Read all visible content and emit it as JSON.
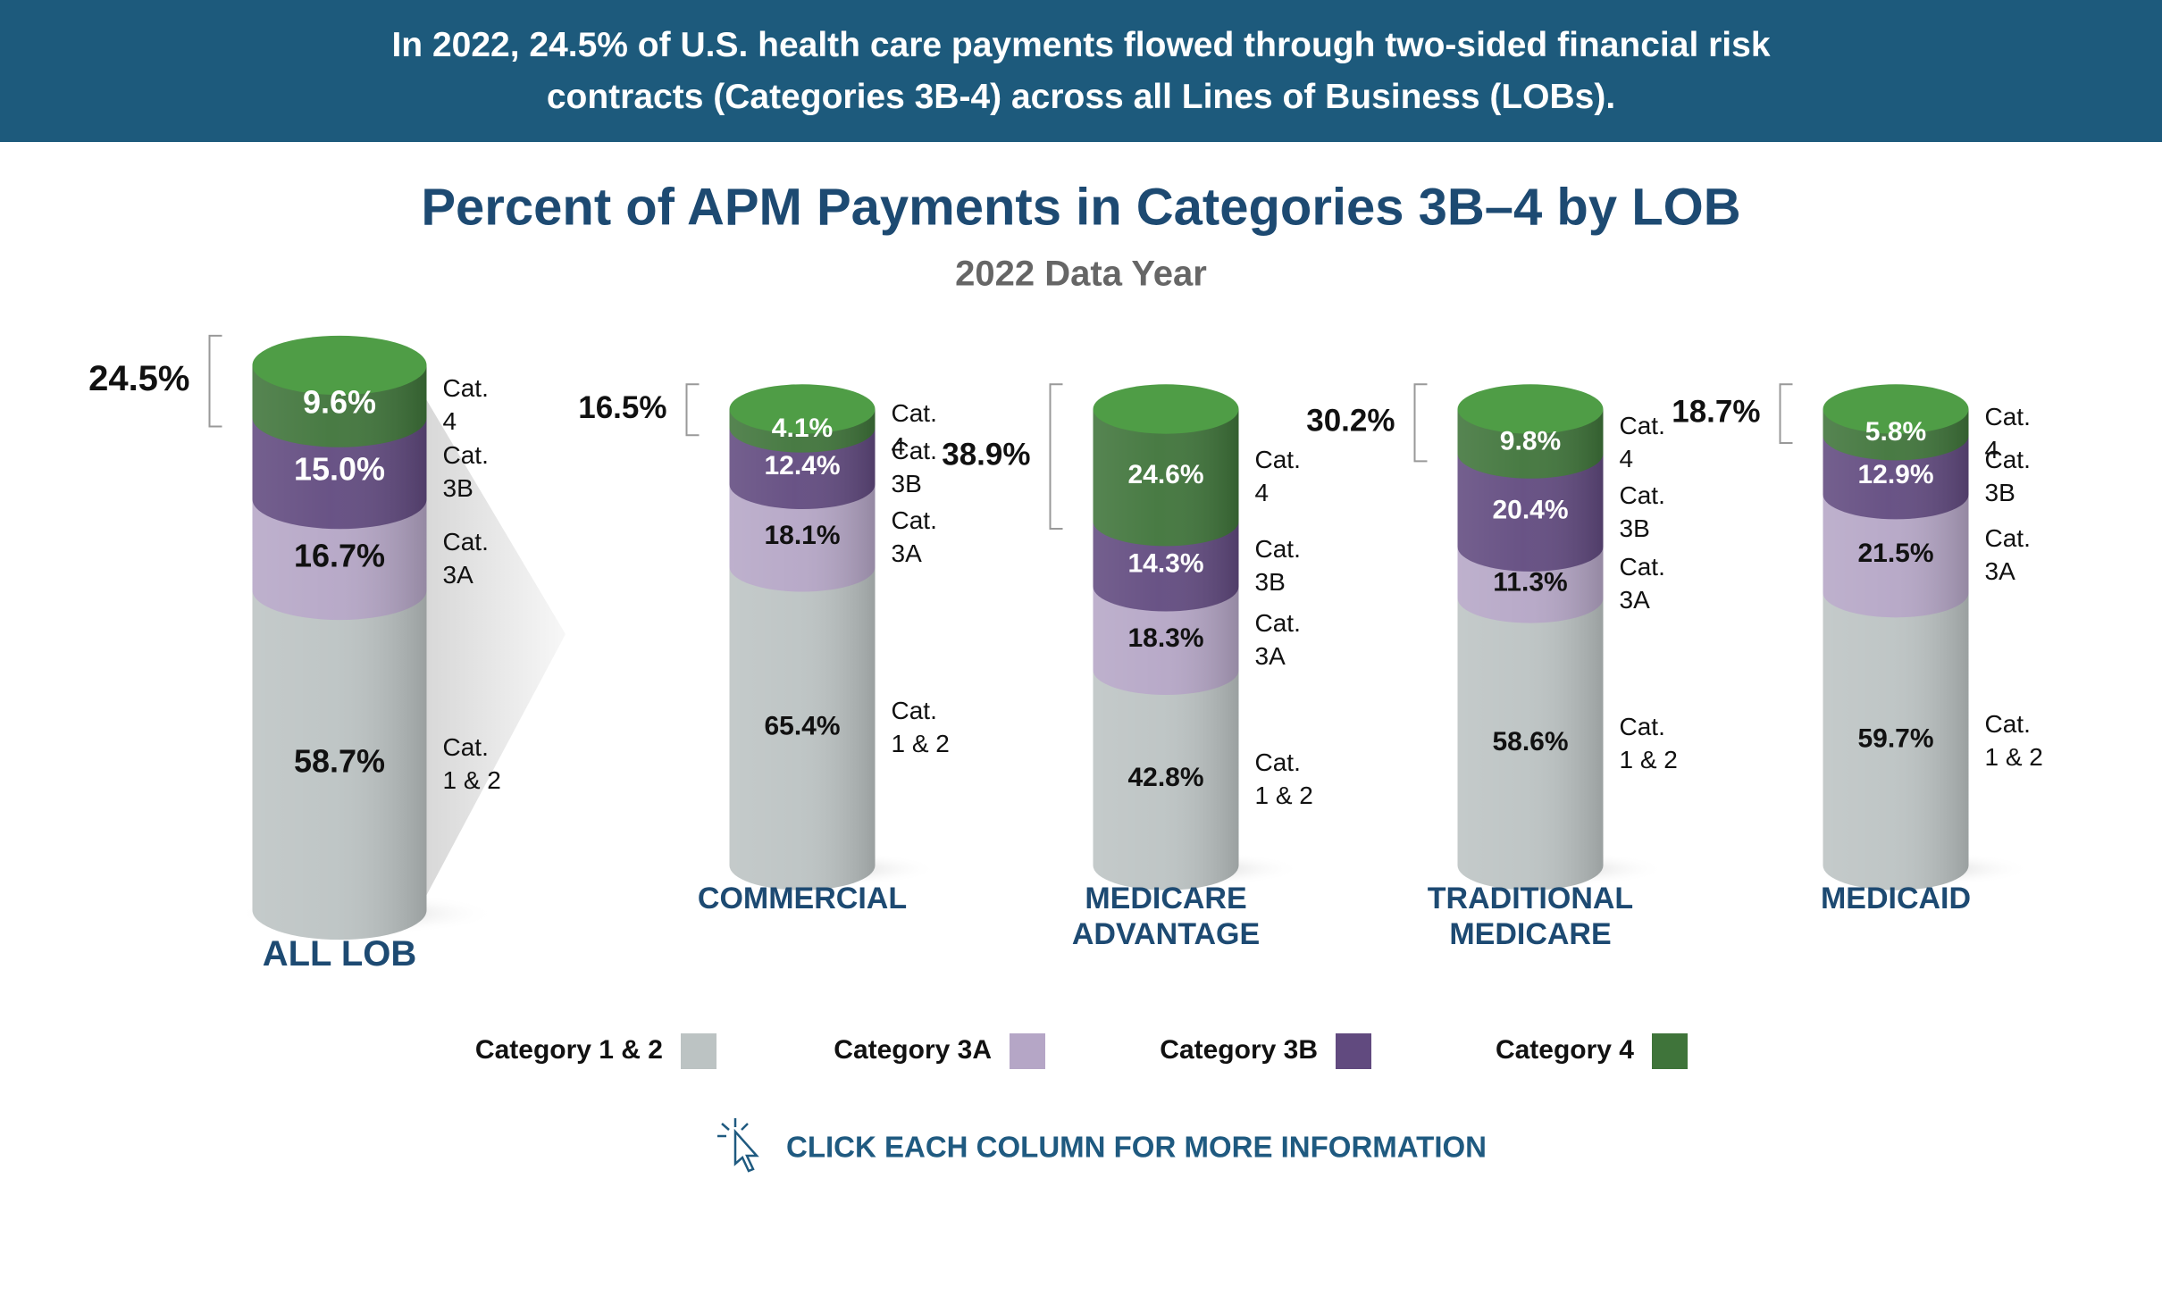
{
  "banner": "In 2022, 24.5% of U.S. health care payments flowed through two-sided financial risk contracts (Categories 3B-4) across all Lines of Business (LOBs).",
  "chart_data": {
    "type": "stacked_cylinder",
    "title": "Percent of APM Payments in Categories 3B–4 by LOB",
    "subtitle": "2022 Data Year",
    "categories": [
      "ALL LOB",
      "COMMERCIAL",
      "MEDICARE ADVANTAGE",
      "TRADITIONAL MEDICARE",
      "MEDICAID"
    ],
    "series": [
      {
        "name": "Category 1 & 2",
        "side_label": "Cat. 1 & 2",
        "color": "#bcc3c3",
        "label_color": "#111111",
        "values": [
          58.7,
          65.4,
          42.8,
          58.6,
          59.7
        ],
        "value_labels": [
          "58.7%",
          "65.4%",
          "42.8%",
          "58.6%",
          "59.7%"
        ]
      },
      {
        "name": "Category 3A",
        "side_label": "Cat. 3A",
        "color": "#b5a6c6",
        "label_color": "#111111",
        "values": [
          16.7,
          18.1,
          18.3,
          11.3,
          21.5
        ],
        "value_labels": [
          "16.7%",
          "18.1%",
          "18.3%",
          "11.3%",
          "21.5%"
        ]
      },
      {
        "name": "Category 3B",
        "side_label": "Cat. 3B",
        "color": "#614a7f",
        "label_color": "#ffffff",
        "values": [
          15.0,
          12.4,
          14.3,
          20.4,
          12.9
        ],
        "value_labels": [
          "15.0%",
          "12.4%",
          "14.3%",
          "20.4%",
          "12.9%"
        ]
      },
      {
        "name": "Category 4",
        "side_label": "Cat. 4",
        "color": "#3f743a",
        "label_color": "#ffffff",
        "cap_color": "#4f9d46",
        "values": [
          9.6,
          4.1,
          24.6,
          9.8,
          5.8
        ],
        "value_labels": [
          "9.6%",
          "4.1%",
          "24.6%",
          "9.8%",
          "5.8%"
        ]
      }
    ],
    "bracket_totals": {
      "values": [
        24.5,
        16.5,
        38.9,
        30.2,
        18.7
      ],
      "value_labels": [
        "24.5%",
        "16.5%",
        "38.9%",
        "30.2%",
        "18.7%"
      ]
    }
  },
  "call_to_action": "CLICK EACH COLUMN FOR MORE INFORMATION"
}
